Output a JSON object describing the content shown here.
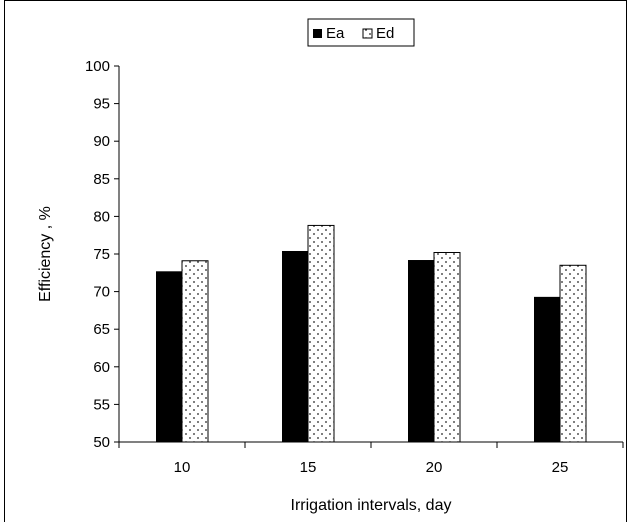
{
  "chart_data": {
    "type": "bar",
    "categories": [
      "10",
      "15",
      "20",
      "25"
    ],
    "series": [
      {
        "name": "Ea",
        "values": [
          72.7,
          75.4,
          74.2,
          69.3
        ],
        "color": "#000000",
        "pattern": "solid"
      },
      {
        "name": "Ed",
        "values": [
          74.1,
          78.8,
          75.2,
          73.5
        ],
        "color": "#ffffff",
        "pattern": "dotted-diamond"
      }
    ],
    "title": "",
    "xlabel": "Irrigation intervals, day",
    "ylabel": "Efficiency , %",
    "ylim": [
      50,
      100
    ],
    "yticks": [
      "50",
      "55",
      "60",
      "65",
      "70",
      "75",
      "80",
      "85",
      "90",
      "95",
      "100"
    ],
    "grid": false,
    "legend_position": "top-center"
  }
}
